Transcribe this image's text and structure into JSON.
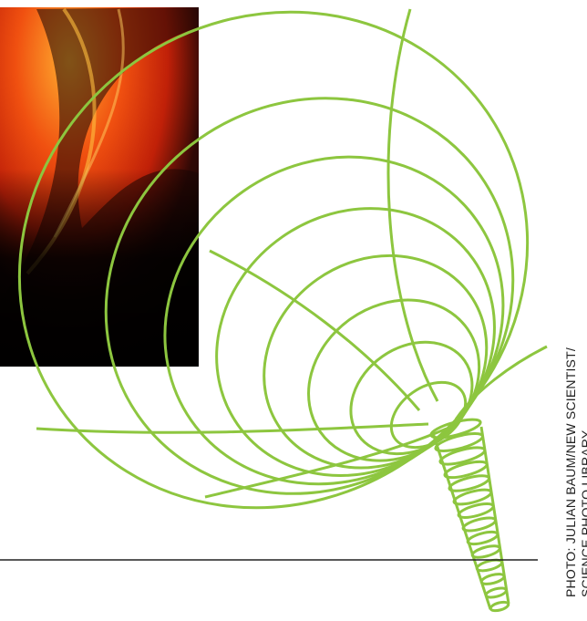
{
  "credit": {
    "line1": "PHOTO: JULIAN BAUM/NEW SCIENTIST/",
    "line2": "SCIENCE PHOTO LIBRARY"
  }
}
